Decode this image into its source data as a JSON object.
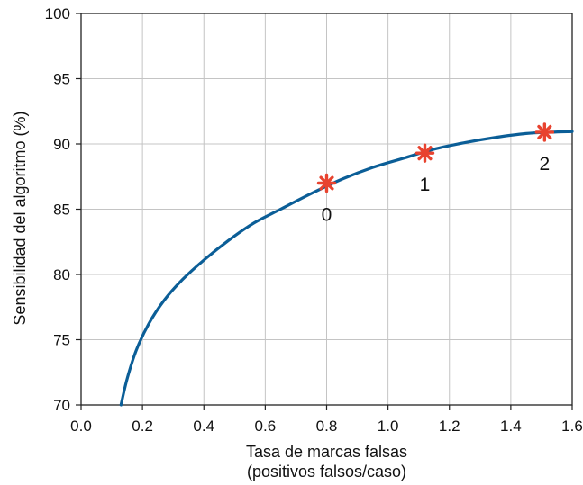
{
  "chart_data": {
    "type": "line",
    "xlabel_line1": "Tasa de marcas falsas",
    "xlabel_line2": "(positivos falsos/caso)",
    "ylabel": "Sensibilidad del algoritmo (%)",
    "xlim": [
      0.0,
      1.6
    ],
    "ylim": [
      70,
      100
    ],
    "xticks": [
      "0.0",
      "0.2",
      "0.4",
      "0.6",
      "0.8",
      "1.0",
      "1.2",
      "1.4",
      "1.6"
    ],
    "yticks": [
      "70",
      "75",
      "80",
      "85",
      "90",
      "95",
      "100"
    ],
    "grid": true,
    "series": [
      {
        "color": "#0b5e97",
        "x": [
          0.13,
          0.15,
          0.18,
          0.22,
          0.27,
          0.33,
          0.4,
          0.48,
          0.56,
          0.65,
          0.75,
          0.85,
          0.95,
          1.05,
          1.15,
          1.25,
          1.35,
          1.45,
          1.53,
          1.6
        ],
        "y": [
          70.0,
          72.0,
          74.2,
          76.2,
          78.0,
          79.6,
          81.1,
          82.6,
          83.9,
          85.0,
          86.2,
          87.3,
          88.2,
          88.9,
          89.6,
          90.1,
          90.5,
          90.8,
          90.9,
          90.95
        ]
      }
    ],
    "markers": {
      "color": "#e8432f",
      "points": [
        {
          "x": 0.8,
          "y": 87.0,
          "label": "0"
        },
        {
          "x": 1.12,
          "y": 89.3,
          "label": "1"
        },
        {
          "x": 1.51,
          "y": 90.9,
          "label": "2"
        }
      ]
    }
  }
}
